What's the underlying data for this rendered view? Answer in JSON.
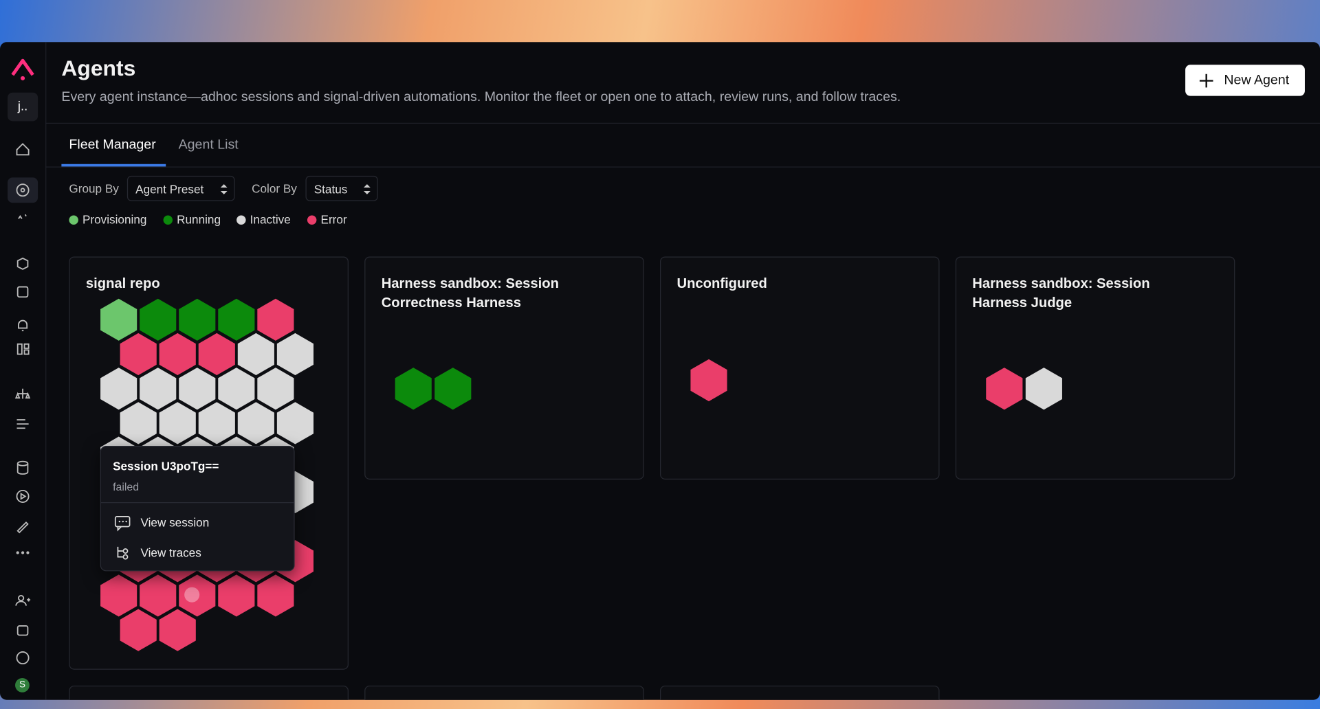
{
  "header": {
    "title": "Agents",
    "subtitle": "Every agent instance—adhoc sessions and signal-driven automations. Monitor the fleet or open one to attach, review runs, and follow traces.",
    "new_agent_button": "New Agent"
  },
  "sidebar": {
    "workspace": "j..",
    "avatar": "S"
  },
  "tabs": [
    "Fleet Manager",
    "Agent List"
  ],
  "controls": {
    "group_by": {
      "label": "Group By",
      "value": "Agent Preset"
    },
    "color_by": {
      "label": "Color By",
      "value": "Status"
    }
  },
  "legend": [
    {
      "label": "Provisioning",
      "color": "#6cc66c"
    },
    {
      "label": "Running",
      "color": "#0c8a0c"
    },
    {
      "label": "Inactive",
      "color": "#d9d9d9"
    },
    {
      "label": "Error",
      "color": "#ea3e6a"
    }
  ],
  "cards": [
    {
      "title": "signal repo"
    },
    {
      "title": "Harness sandbox: Session Correctness Harness"
    },
    {
      "title": "Unconfigured"
    },
    {
      "title": "Harness sandbox: Session Harness Judge"
    }
  ],
  "popup": {
    "title": "Session U3poTg==",
    "status": "failed",
    "actions": [
      "View session",
      "View traces"
    ]
  }
}
